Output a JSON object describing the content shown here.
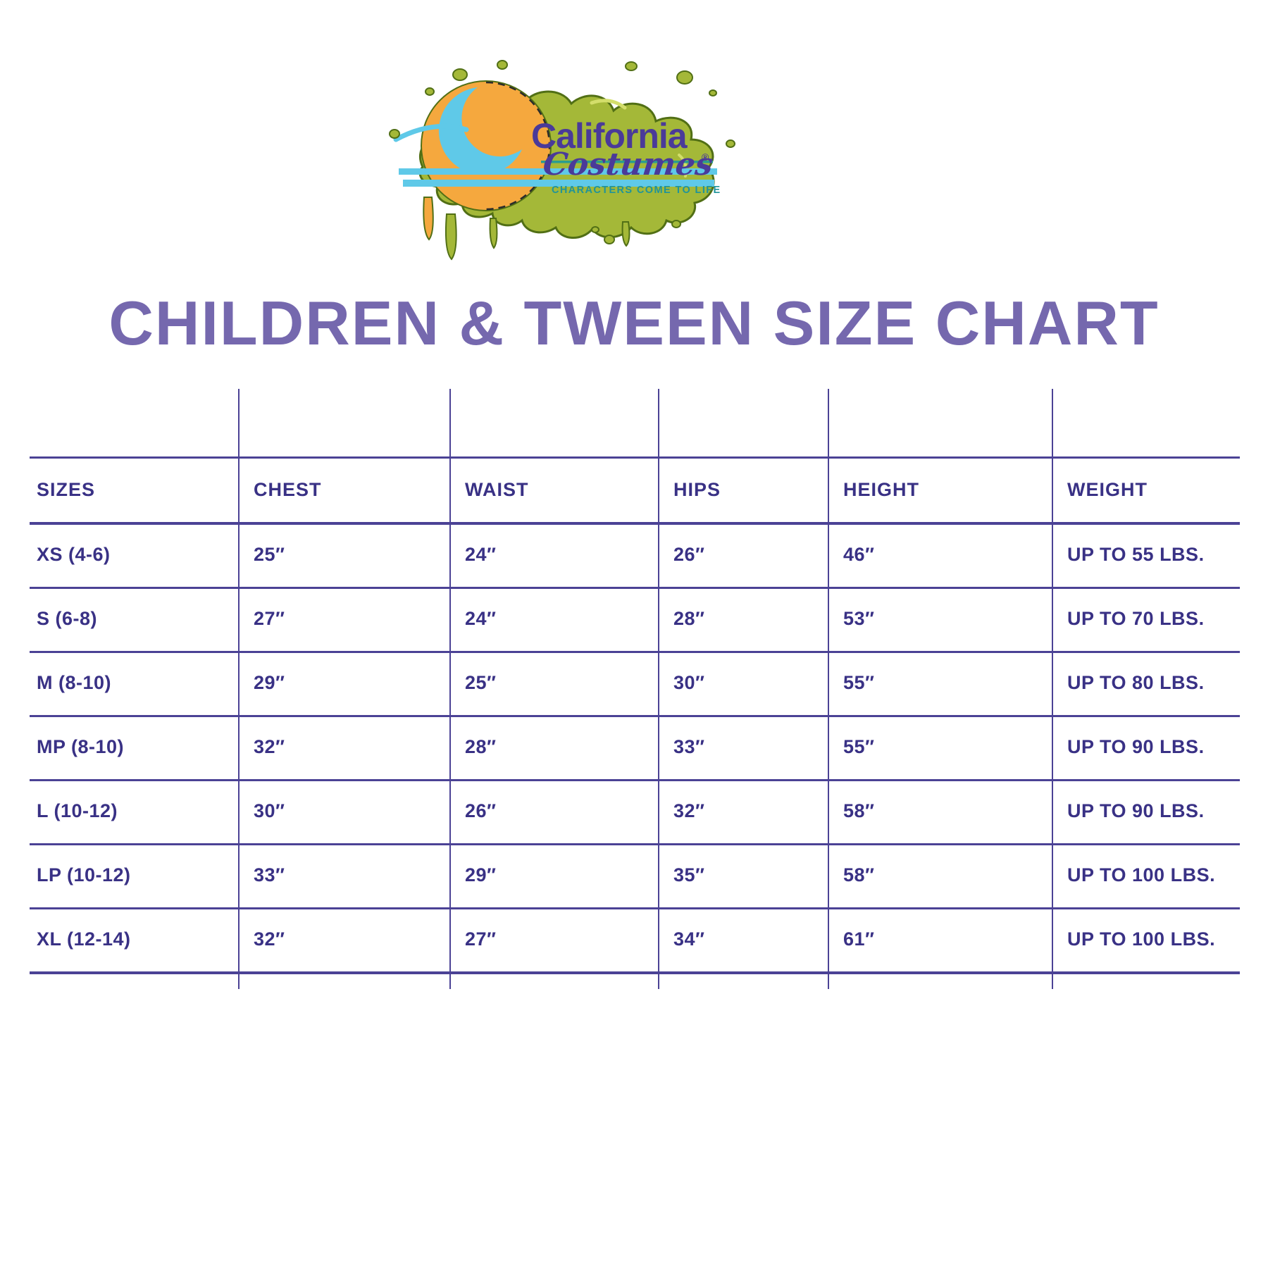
{
  "logo": {
    "brand_line1": "California",
    "brand_line2": "Costumes",
    "registered_mark": "®",
    "tagline": "CHARACTERS COME TO LIFE",
    "colors": {
      "slime": "#a4b838",
      "slime_outline": "#516f15",
      "slime_highlight": "#d3de6b",
      "sun": "#f5a83e",
      "wave": "#5fc9e8",
      "teal_line": "#2a9d8f",
      "brand_purple": "#4a3a99",
      "tagline_teal": "#1f939b"
    }
  },
  "title": "CHILDREN & TWEEN SIZE CHART",
  "title_color": "#7568ae",
  "table": {
    "text_color": "#393185",
    "line_color": "#4b4295",
    "headers": [
      "SIZES",
      "CHEST",
      "WAIST",
      "HIPS",
      "HEIGHT",
      "WEIGHT"
    ],
    "rows": [
      [
        "XS (4-6)",
        "25″",
        "24″",
        "26″",
        "46″",
        "UP TO 55 LBS."
      ],
      [
        "S (6-8)",
        "27″",
        "24″",
        "28″",
        "53″",
        "UP TO 70 LBS."
      ],
      [
        "M (8-10)",
        "29″",
        "25″",
        "30″",
        "55″",
        "UP TO 80 LBS."
      ],
      [
        "MP (8-10)",
        "32″",
        "28″",
        "33″",
        "55″",
        "UP TO 90 LBS."
      ],
      [
        "L (10-12)",
        "30″",
        "26″",
        "32″",
        "58″",
        "UP TO 90 LBS."
      ],
      [
        "LP (10-12)",
        "33″",
        "29″",
        "35″",
        "58″",
        "UP TO 100 LBS."
      ],
      [
        "XL (12-14)",
        "32″",
        "27″",
        "34″",
        "61″",
        "UP TO 100 LBS."
      ]
    ]
  }
}
